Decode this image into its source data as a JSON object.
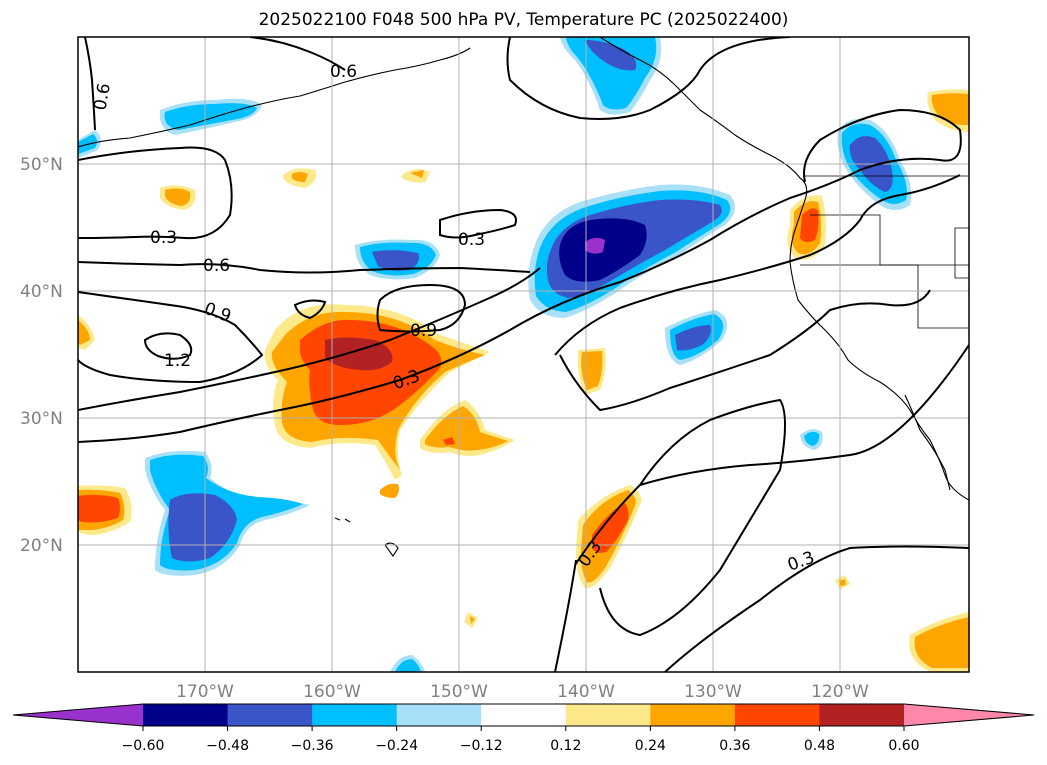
{
  "title": "2025022100 F048 500 hPa PV, Temperature PC (2025022400)",
  "latitude_labels": [
    "50°N",
    "40°N",
    "30°N",
    "20°N"
  ],
  "longitude_labels": [
    "170°W",
    "160°W",
    "150°W",
    "140°W",
    "130°W",
    "120°W"
  ],
  "contour_labels": [
    "0.6",
    "0.6",
    "0.3",
    "0.3",
    "0.6",
    "0.9",
    "1.2",
    "0.9",
    "0.3",
    "0.3",
    "0.3"
  ],
  "colorbar": {
    "ticks": [
      "−0.60",
      "−0.48",
      "−0.36",
      "−0.24",
      "−0.12",
      "0.12",
      "0.24",
      "0.36",
      "0.48",
      "0.60"
    ],
    "colors": [
      "#9932cc",
      "#00008b",
      "#3a55c8",
      "#00bfff",
      "#a8e0f8",
      "#ffffff",
      "#fde98a",
      "#ffa500",
      "#ff4500",
      "#b22222",
      "#ff88aa"
    ]
  }
}
